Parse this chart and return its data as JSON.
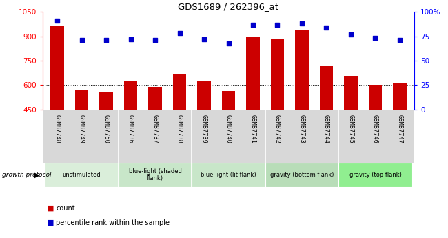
{
  "title": "GDS1689 / 262396_at",
  "samples": [
    "GSM87748",
    "GSM87749",
    "GSM87750",
    "GSM87736",
    "GSM87737",
    "GSM87738",
    "GSM87739",
    "GSM87740",
    "GSM87741",
    "GSM87742",
    "GSM87743",
    "GSM87744",
    "GSM87745",
    "GSM87746",
    "GSM87747"
  ],
  "counts": [
    960,
    570,
    560,
    625,
    590,
    670,
    625,
    565,
    900,
    880,
    940,
    720,
    655,
    600,
    610
  ],
  "percentiles": [
    91,
    71,
    71,
    72,
    71,
    78,
    72,
    68,
    87,
    87,
    88,
    84,
    77,
    73,
    71
  ],
  "ylim_left": [
    450,
    1050
  ],
  "ylim_right": [
    0,
    100
  ],
  "yticks_left": [
    450,
    600,
    750,
    900,
    1050
  ],
  "yticks_right": [
    0,
    25,
    50,
    75,
    100
  ],
  "bar_color": "#cc0000",
  "dot_color": "#0000cc",
  "groups": [
    {
      "label": "unstimulated",
      "start": 0,
      "end": 3,
      "color": "#daeeda"
    },
    {
      "label": "blue-light (shaded\nflank)",
      "start": 3,
      "end": 6,
      "color": "#c8e6c9"
    },
    {
      "label": "blue-light (lit flank)",
      "start": 6,
      "end": 9,
      "color": "#c8e6c9"
    },
    {
      "label": "gravity (bottom flank)",
      "start": 9,
      "end": 12,
      "color": "#b8ddb8"
    },
    {
      "label": "gravity (top flank)",
      "start": 12,
      "end": 15,
      "color": "#90ee90"
    }
  ],
  "xtick_bg": "#d8d8d8",
  "growth_protocol_label": "growth protocol",
  "legend_count_label": "count",
  "legend_pct_label": "percentile rank within the sample"
}
